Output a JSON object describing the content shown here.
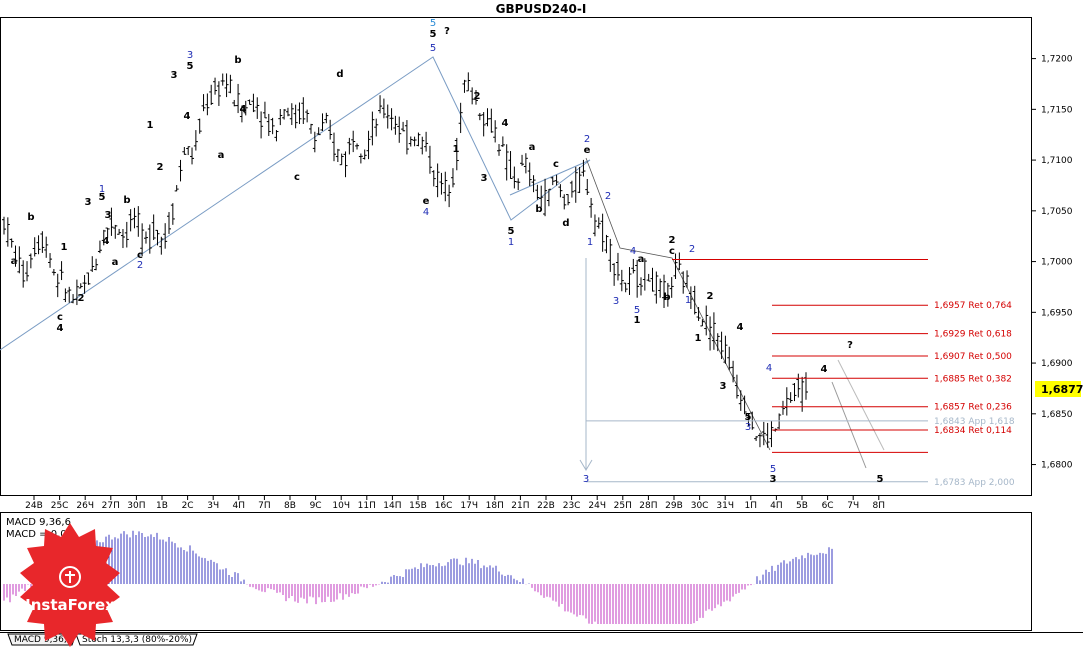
{
  "window": {
    "title": "GBPUSD240-I",
    "current_price": "1,6877",
    "brand": "InstaForex"
  },
  "colors": {
    "candle": "#000000",
    "fib": "#d40000",
    "projection": "#a6b7c9",
    "wave_blue": "#1f2db5",
    "wave_cyan": "#2a8bd6",
    "macd_pos": "#3a3ac0",
    "macd_neg": "#c23ac0",
    "price_tag": "#ffff00",
    "logo": "#e8272b"
  },
  "indicator": {
    "label1": "MACD 9,36,6",
    "label2": "MACD = 0,00",
    "tabs": [
      "MACD 9,36,6",
      "Stoch 13,3,3 (80%-20%)"
    ]
  },
  "chart_data": {
    "type": "candlestick",
    "title": "GBPUSD240-I",
    "ylim": [
      1.677,
      1.724
    ],
    "y_ticks": [
      "1,7200",
      "1,7150",
      "1,7100",
      "1,7050",
      "1,7000",
      "1,6950",
      "1,6900",
      "1,6850",
      "1,6800"
    ],
    "x_ticks": [
      "24В",
      "25С",
      "26Ч",
      "27П",
      "30П",
      "1В",
      "2С",
      "3Ч",
      "4П",
      "7П",
      "8В",
      "9С",
      "10Ч",
      "11П",
      "14П",
      "15В",
      "16С",
      "17Ч",
      "18П",
      "21П",
      "22В",
      "23С",
      "24Ч",
      "25П",
      "28П",
      "29В",
      "30С",
      "31Ч",
      "1П",
      "4П",
      "5В",
      "6С",
      "7Ч",
      "8П"
    ],
    "levels": [
      {
        "value": 1.7002,
        "label": ""
      },
      {
        "value": 1.6957,
        "label": "1,6957 Ret 0,764"
      },
      {
        "value": 1.6929,
        "label": "1,6929 Ret 0,618"
      },
      {
        "value": 1.6907,
        "label": "1,6907 Ret 0,500"
      },
      {
        "value": 1.6885,
        "label": "1,6885 Ret 0,382"
      },
      {
        "value": 1.6857,
        "label": "1,6857 Ret 0,236"
      },
      {
        "value": 1.6834,
        "label": "1,6834 Ret 0,114"
      },
      {
        "value": 1.6812,
        "label": ""
      }
    ],
    "projections": [
      {
        "value": 1.6843,
        "label": "1,6843 App 1,618"
      },
      {
        "value": 1.6783,
        "label": "1,6783 App 2,000"
      }
    ],
    "close_path": [
      1.704,
      1.701,
      1.6985,
      1.7015,
      1.7025,
      1.699,
      1.6975,
      1.696,
      1.6975,
      1.6995,
      1.703,
      1.704,
      1.7025,
      1.7045,
      1.7015,
      1.7035,
      1.702,
      1.706,
      1.711,
      1.7105,
      1.7155,
      1.7165,
      1.718,
      1.716,
      1.715,
      1.716,
      1.714,
      1.713,
      1.7155,
      1.714,
      1.715,
      1.712,
      1.7135,
      1.711,
      1.71,
      1.713,
      1.711,
      1.7135,
      1.715,
      1.714,
      1.712,
      1.7125,
      1.7115,
      1.7085,
      1.707,
      1.7095,
      1.718,
      1.716,
      1.714,
      1.713,
      1.71,
      1.708,
      1.7095,
      1.707,
      1.706,
      1.708,
      1.706,
      1.7075,
      1.7085,
      1.704,
      1.7025,
      1.6995,
      1.6975,
      1.6985,
      1.699,
      1.6975,
      1.6965,
      1.699,
      1.698,
      1.696,
      1.694,
      1.693,
      1.691,
      1.688,
      1.686,
      1.683,
      1.6825,
      1.6835,
      1.686,
      1.687,
      1.6877
    ],
    "waves": [
      {
        "t": "a",
        "c": "#000000",
        "x": 14,
        "y": 264
      },
      {
        "t": "b",
        "c": "#000000",
        "x": 31,
        "y": 220
      },
      {
        "t": "c",
        "c": "#000000",
        "x": 60,
        "y": 320
      },
      {
        "t": "4",
        "c": "#000000",
        "x": 60,
        "y": 331
      },
      {
        "t": "1",
        "c": "#000000",
        "x": 64,
        "y": 250
      },
      {
        "t": "2",
        "c": "#000000",
        "x": 81,
        "y": 301
      },
      {
        "t": "3",
        "c": "#000000",
        "x": 88,
        "y": 205
      },
      {
        "t": "1",
        "c": "#1f2db5",
        "x": 102,
        "y": 192
      },
      {
        "t": "5",
        "c": "#000000",
        "x": 102,
        "y": 200
      },
      {
        "t": "4",
        "c": "#000000",
        "x": 106,
        "y": 244
      },
      {
        "t": "3",
        "c": "#000000",
        "x": 108,
        "y": 218
      },
      {
        "t": "a",
        "c": "#000000",
        "x": 115,
        "y": 265
      },
      {
        "t": "b",
        "c": "#000000",
        "x": 127,
        "y": 203
      },
      {
        "t": "c",
        "c": "#000000",
        "x": 140,
        "y": 258
      },
      {
        "t": "2",
        "c": "#1f2db5",
        "x": 140,
        "y": 268
      },
      {
        "t": "1",
        "c": "#000000",
        "x": 150,
        "y": 128
      },
      {
        "t": "2",
        "c": "#000000",
        "x": 160,
        "y": 170
      },
      {
        "t": "3",
        "c": "#000000",
        "x": 174,
        "y": 78
      },
      {
        "t": "3",
        "c": "#1f2db5",
        "x": 190,
        "y": 58
      },
      {
        "t": "5",
        "c": "#000000",
        "x": 190,
        "y": 69
      },
      {
        "t": "4",
        "c": "#000000",
        "x": 187,
        "y": 119
      },
      {
        "t": "a",
        "c": "#000000",
        "x": 221,
        "y": 158
      },
      {
        "t": "b",
        "c": "#000000",
        "x": 238,
        "y": 63
      },
      {
        "t": "4",
        "c": "#000000",
        "x": 243,
        "y": 112
      },
      {
        "t": "c",
        "c": "#000000",
        "x": 297,
        "y": 180
      },
      {
        "t": "d",
        "c": "#000000",
        "x": 340,
        "y": 77
      },
      {
        "t": "5",
        "c": "#2a8bd6",
        "x": 433,
        "y": 26
      },
      {
        "t": "5",
        "c": "#000000",
        "x": 433,
        "y": 37
      },
      {
        "t": "?",
        "c": "#000000",
        "x": 447,
        "y": 34
      },
      {
        "t": "5",
        "c": "#1f2db5",
        "x": 433,
        "y": 51
      },
      {
        "t": "e",
        "c": "#000000",
        "x": 426,
        "y": 204
      },
      {
        "t": "4",
        "c": "#1f2db5",
        "x": 426,
        "y": 215
      },
      {
        "t": "1",
        "c": "#000000",
        "x": 456,
        "y": 152
      },
      {
        "t": "2",
        "c": "#000000",
        "x": 477,
        "y": 99
      },
      {
        "t": "3",
        "c": "#000000",
        "x": 484,
        "y": 181
      },
      {
        "t": "4",
        "c": "#000000",
        "x": 505,
        "y": 126
      },
      {
        "t": "5",
        "c": "#000000",
        "x": 511,
        "y": 234
      },
      {
        "t": "1",
        "c": "#1f2db5",
        "x": 511,
        "y": 245
      },
      {
        "t": "a",
        "c": "#000000",
        "x": 532,
        "y": 150
      },
      {
        "t": "b",
        "c": "#000000",
        "x": 539,
        "y": 212
      },
      {
        "t": "c",
        "c": "#000000",
        "x": 556,
        "y": 167
      },
      {
        "t": "d",
        "c": "#000000",
        "x": 566,
        "y": 226
      },
      {
        "t": "2",
        "c": "#1f2db5",
        "x": 587,
        "y": 142
      },
      {
        "t": "e",
        "c": "#000000",
        "x": 587,
        "y": 153
      },
      {
        "t": "1",
        "c": "#1f2db5",
        "x": 590,
        "y": 245
      },
      {
        "t": "2",
        "c": "#1f2db5",
        "x": 608,
        "y": 199
      },
      {
        "t": "4",
        "c": "#1f2db5",
        "x": 633,
        "y": 254
      },
      {
        "t": "a",
        "c": "#000000",
        "x": 641,
        "y": 262
      },
      {
        "t": "3",
        "c": "#1f2db5",
        "x": 616,
        "y": 304
      },
      {
        "t": "5",
        "c": "#1f2db5",
        "x": 637,
        "y": 313
      },
      {
        "t": "1",
        "c": "#000000",
        "x": 637,
        "y": 323
      },
      {
        "t": "b",
        "c": "#000000",
        "x": 667,
        "y": 300
      },
      {
        "t": "2",
        "c": "#000000",
        "x": 672,
        "y": 243
      },
      {
        "t": "c",
        "c": "#000000",
        "x": 672,
        "y": 254
      },
      {
        "t": "2",
        "c": "#1f2db5",
        "x": 692,
        "y": 252
      },
      {
        "t": "1",
        "c": "#1f2db5",
        "x": 688,
        "y": 303
      },
      {
        "t": "2",
        "c": "#000000",
        "x": 710,
        "y": 299
      },
      {
        "t": "1",
        "c": "#000000",
        "x": 698,
        "y": 341
      },
      {
        "t": "4",
        "c": "#000000",
        "x": 740,
        "y": 330
      },
      {
        "t": "3",
        "c": "#000000",
        "x": 723,
        "y": 389
      },
      {
        "t": "4",
        "c": "#1f2db5",
        "x": 769,
        "y": 371
      },
      {
        "t": "5",
        "c": "#000000",
        "x": 748,
        "y": 420
      },
      {
        "t": "3",
        "c": "#1f2db5",
        "x": 748,
        "y": 430
      },
      {
        "t": "5",
        "c": "#1f2db5",
        "x": 773,
        "y": 472
      },
      {
        "t": "3",
        "c": "#000000",
        "x": 773,
        "y": 482
      },
      {
        "t": "4",
        "c": "#000000",
        "x": 824,
        "y": 372
      },
      {
        "t": "?",
        "c": "#000000",
        "x": 850,
        "y": 348
      },
      {
        "t": "5",
        "c": "#000000",
        "x": 880,
        "y": 482
      },
      {
        "t": "3",
        "c": "#1f2db5",
        "x": 586,
        "y": 482
      }
    ]
  }
}
